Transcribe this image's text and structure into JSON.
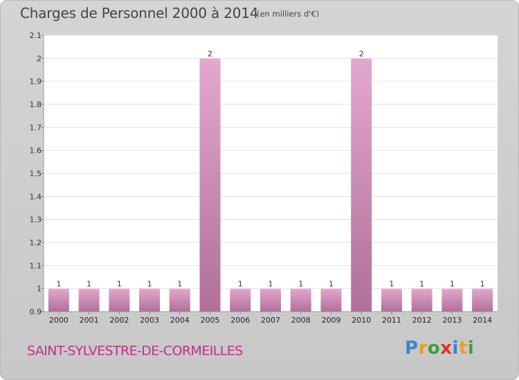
{
  "title": "Charges de Personnel 2000 à 2014",
  "unit_note": "(en milliers d'€)",
  "commune": "SAINT-SYLVESTRE-DE-CORMEILLES",
  "brand": {
    "letters": [
      "P",
      "r",
      "o",
      "x",
      "i",
      "t",
      "i"
    ],
    "colors": [
      "#3a86c8",
      "#e8a020",
      "#3aa040",
      "#e03030",
      "#3a86c8",
      "#e8a020",
      "#3aa040"
    ]
  },
  "colors": {
    "bar_top": "#e3a8cf",
    "bar_bottom": "#b07098",
    "grid": "#e2e2e2",
    "plot_bg": "#ffffff"
  },
  "chart_data": {
    "type": "bar",
    "categories": [
      "2000",
      "2001",
      "2002",
      "2003",
      "2004",
      "2005",
      "2006",
      "2007",
      "2008",
      "2009",
      "2010",
      "2011",
      "2012",
      "2013",
      "2014"
    ],
    "values": [
      1,
      1,
      1,
      1,
      1,
      2,
      1,
      1,
      1,
      1,
      2,
      1,
      1,
      1,
      1
    ],
    "data_labels": [
      "1",
      "1",
      "1",
      "1",
      "1",
      "2",
      "1",
      "1",
      "1",
      "1",
      "2",
      "1",
      "1",
      "1",
      "1"
    ],
    "ylim": [
      0.9,
      2.1
    ],
    "yticks": [
      "0.9",
      "1",
      "1.1",
      "1.2",
      "1.3",
      "1.4",
      "1.5",
      "1.6",
      "1.7",
      "1.8",
      "1.9",
      "2",
      "2.1"
    ],
    "grid": true
  }
}
